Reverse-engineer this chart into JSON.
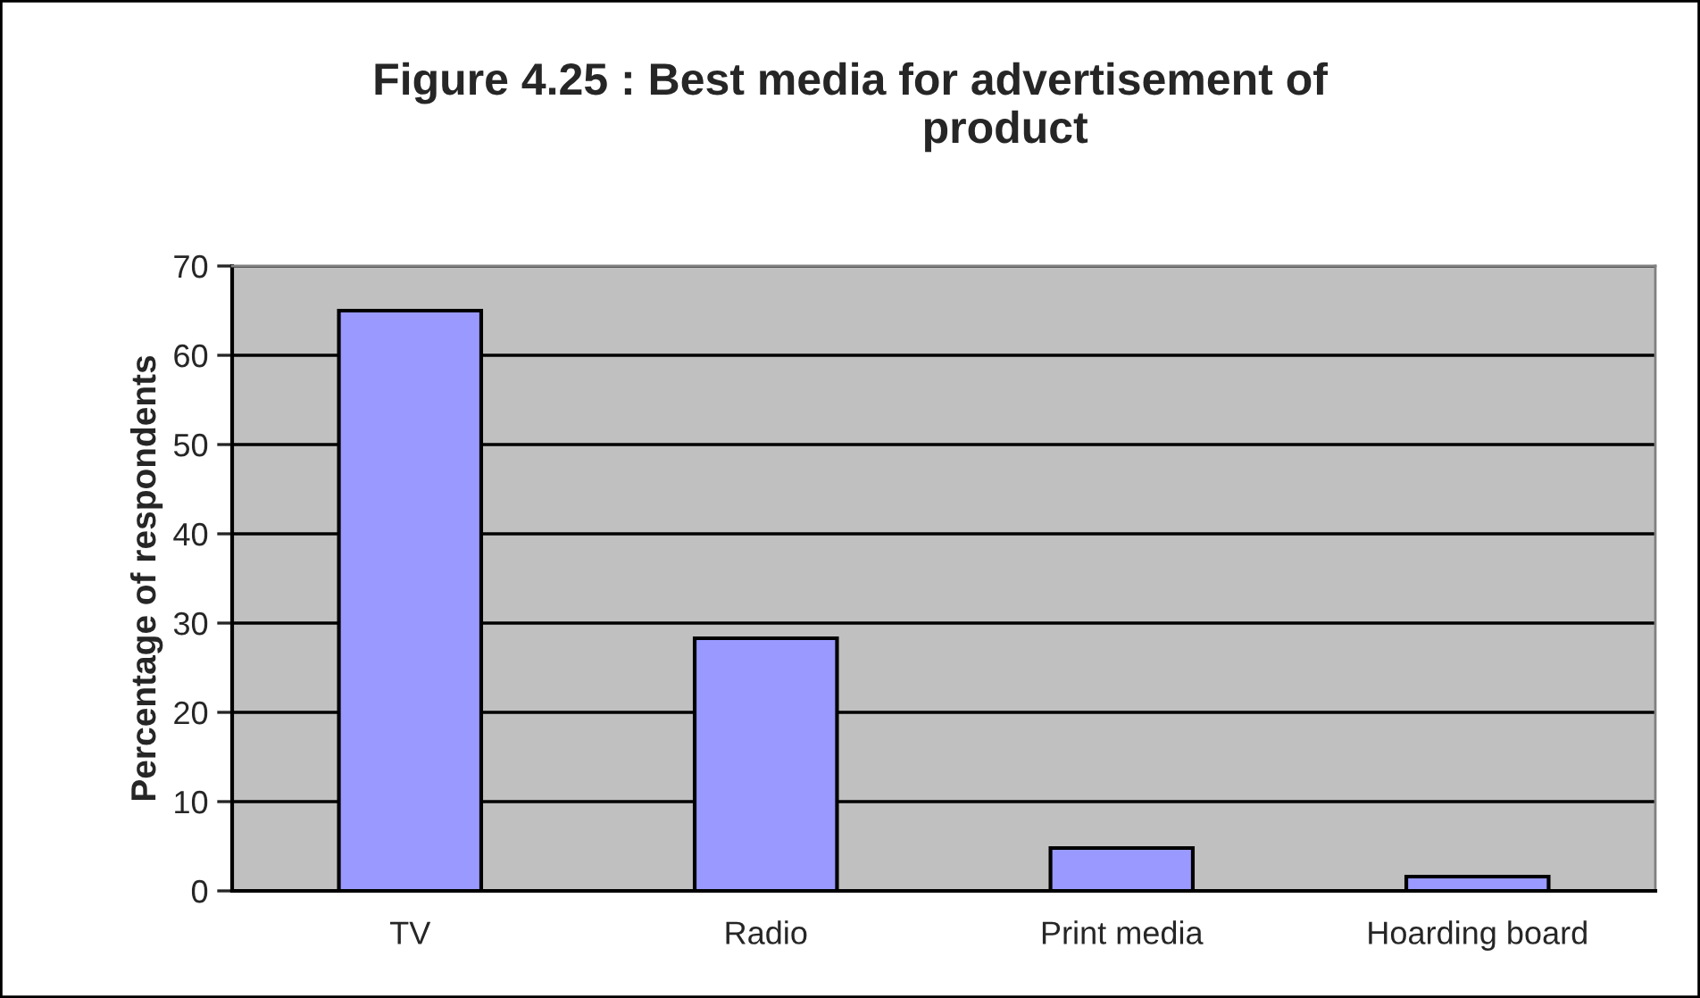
{
  "chart_data": {
    "type": "bar",
    "title": "Figure 4.25 : Best media for advertisement of\n                         product",
    "ylabel": "Percentage of respondents",
    "categories": [
      "TV",
      "Radio",
      "Print media",
      "Hoarding board"
    ],
    "values": [
      65,
      28.3,
      4.8,
      1.6
    ],
    "color": "#9999ff",
    "ylim": [
      0,
      70
    ],
    "yticks": [
      0,
      10,
      20,
      30,
      40,
      50,
      60,
      70
    ],
    "grid": "y"
  }
}
